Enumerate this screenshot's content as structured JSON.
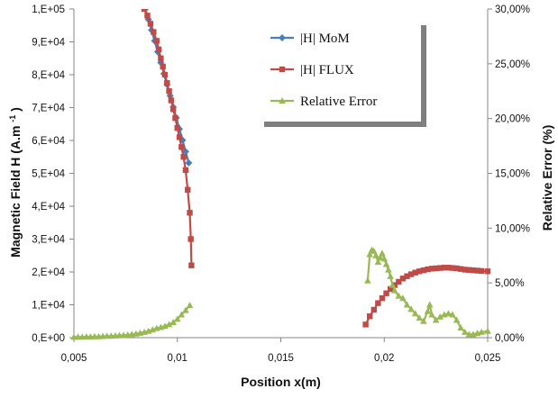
{
  "chart_data": {
    "type": "line",
    "xlabel": "Position x(m)",
    "ylabel_prefix": "Magnetic Field   H (A.m",
    "ylabel_superscript": "-1",
    "ylabel_suffix": ")",
    "y2label": "Relative Error (%)",
    "xlim": [
      0.005,
      0.025
    ],
    "ylim": [
      0,
      100000
    ],
    "y2lim": [
      0,
      30
    ],
    "grid": false,
    "legend_position": "top-right",
    "x_ticks": [
      {
        "value": 0.005,
        "label": "0,005"
      },
      {
        "value": 0.01,
        "label": "0,01"
      },
      {
        "value": 0.015,
        "label": "0,015"
      },
      {
        "value": 0.02,
        "label": "0,02"
      },
      {
        "value": 0.025,
        "label": "0,025"
      }
    ],
    "y_ticks": [
      {
        "value": 0,
        "label": "0,E+00"
      },
      {
        "value": 10000,
        "label": "1,E+04"
      },
      {
        "value": 20000,
        "label": "2,E+04"
      },
      {
        "value": 30000,
        "label": "3,E+04"
      },
      {
        "value": 40000,
        "label": "4,E+04"
      },
      {
        "value": 50000,
        "label": "5,E+04"
      },
      {
        "value": 60000,
        "label": "6,E+04"
      },
      {
        "value": 70000,
        "label": "7,E+04"
      },
      {
        "value": 80000,
        "label": "8,E+04"
      },
      {
        "value": 90000,
        "label": "9,E+04"
      },
      {
        "value": 100000,
        "label": "1,E+05"
      }
    ],
    "y2_ticks": [
      {
        "value": 0,
        "label": "0,00%"
      },
      {
        "value": 5,
        "label": "5,00%"
      },
      {
        "value": 10,
        "label": "10,00%"
      },
      {
        "value": 15,
        "label": "15,00%"
      },
      {
        "value": 20,
        "label": "20,00%"
      },
      {
        "value": 25,
        "label": "25,00%"
      },
      {
        "value": 30,
        "label": "30,00%"
      }
    ],
    "series": [
      {
        "name": "|H| MoM",
        "axis": "left",
        "color": "#4a7ebb",
        "marker": "diamond",
        "points": [
          [
            0.00845,
            100000
          ],
          [
            0.0086,
            96800
          ],
          [
            0.00875,
            93600
          ],
          [
            0.0089,
            90300
          ],
          [
            0.00905,
            87000
          ],
          [
            0.0092,
            83700
          ],
          [
            0.00935,
            80300
          ],
          [
            0.0095,
            77000
          ],
          [
            0.00965,
            73600
          ],
          [
            0.0098,
            70200
          ],
          [
            0.00995,
            66900
          ],
          [
            0.0101,
            63500
          ],
          [
            0.01025,
            60100
          ],
          [
            0.0104,
            56600
          ],
          [
            0.01055,
            53200
          ]
        ]
      },
      {
        "name": "|H| FLUX",
        "axis": "left",
        "color": "#be4b48",
        "marker": "square",
        "points": [
          [
            0.0084,
            100000
          ],
          [
            0.00855,
            98000
          ],
          [
            0.0087,
            95500
          ],
          [
            0.00885,
            93000
          ],
          [
            0.009,
            90300
          ],
          [
            0.0091,
            87700
          ],
          [
            0.0092,
            85000
          ],
          [
            0.0093,
            82500
          ],
          [
            0.0094,
            80000
          ],
          [
            0.0095,
            77500
          ],
          [
            0.0096,
            75000
          ],
          [
            0.0097,
            72200
          ],
          [
            0.0098,
            69500
          ],
          [
            0.0099,
            66800
          ],
          [
            0.01,
            63800
          ],
          [
            0.0101,
            61000
          ],
          [
            0.0102,
            58000
          ],
          [
            0.0103,
            55000
          ],
          [
            0.0104,
            51000
          ],
          [
            0.0105,
            45000
          ],
          [
            0.0106,
            38000
          ],
          [
            0.01065,
            30000
          ],
          [
            0.01068,
            22000
          ],
          [
            0.0191,
            4000
          ],
          [
            0.0193,
            6500
          ],
          [
            0.0195,
            8500
          ],
          [
            0.0197,
            10500
          ],
          [
            0.0199,
            12000
          ],
          [
            0.0201,
            13500
          ],
          [
            0.0203,
            14800
          ],
          [
            0.0205,
            16000
          ],
          [
            0.0207,
            17000
          ],
          [
            0.0209,
            18000
          ],
          [
            0.0211,
            18700
          ],
          [
            0.0213,
            19300
          ],
          [
            0.0215,
            19800
          ],
          [
            0.0217,
            20200
          ],
          [
            0.0219,
            20500
          ],
          [
            0.0221,
            20800
          ],
          [
            0.0223,
            21000
          ],
          [
            0.0225,
            21100
          ],
          [
            0.0227,
            21200
          ],
          [
            0.0229,
            21300
          ],
          [
            0.0231,
            21300
          ],
          [
            0.0233,
            21200
          ],
          [
            0.0235,
            21100
          ],
          [
            0.0237,
            20900
          ],
          [
            0.0239,
            20700
          ],
          [
            0.0241,
            20600
          ],
          [
            0.0243,
            20500
          ],
          [
            0.0245,
            20400
          ],
          [
            0.0247,
            20300
          ],
          [
            0.025,
            20200
          ]
        ]
      },
      {
        "name": "Relative Error",
        "axis": "right",
        "color": "#98b954",
        "marker": "triangle",
        "points": [
          [
            0.005,
            0.05
          ],
          [
            0.0052,
            0.06
          ],
          [
            0.0054,
            0.06
          ],
          [
            0.0056,
            0.08
          ],
          [
            0.0058,
            0.08
          ],
          [
            0.006,
            0.1
          ],
          [
            0.0062,
            0.1
          ],
          [
            0.0064,
            0.12
          ],
          [
            0.0066,
            0.14
          ],
          [
            0.0068,
            0.15
          ],
          [
            0.007,
            0.17
          ],
          [
            0.0072,
            0.2
          ],
          [
            0.0074,
            0.22
          ],
          [
            0.0076,
            0.25
          ],
          [
            0.0078,
            0.3
          ],
          [
            0.008,
            0.35
          ],
          [
            0.0082,
            0.42
          ],
          [
            0.0084,
            0.5
          ],
          [
            0.0086,
            0.6
          ],
          [
            0.0088,
            0.72
          ],
          [
            0.009,
            0.85
          ],
          [
            0.0092,
            0.95
          ],
          [
            0.0094,
            1.05
          ],
          [
            0.0096,
            1.2
          ],
          [
            0.0098,
            1.4
          ],
          [
            0.01,
            1.7
          ],
          [
            0.0102,
            2.1
          ],
          [
            0.0104,
            2.5
          ],
          [
            0.0106,
            2.95
          ],
          [
            0.0192,
            5.2
          ],
          [
            0.0193,
            7.6
          ],
          [
            0.0194,
            8.0
          ],
          [
            0.0195,
            7.9
          ],
          [
            0.0196,
            7.5
          ],
          [
            0.0197,
            6.9
          ],
          [
            0.0198,
            7.3
          ],
          [
            0.0199,
            7.7
          ],
          [
            0.02,
            7.2
          ],
          [
            0.0201,
            6.7
          ],
          [
            0.0202,
            6.2
          ],
          [
            0.0203,
            5.6
          ],
          [
            0.0204,
            4.8
          ],
          [
            0.0205,
            4.3
          ],
          [
            0.0207,
            3.8
          ],
          [
            0.0209,
            3.6
          ],
          [
            0.0211,
            3.0
          ],
          [
            0.0213,
            2.6
          ],
          [
            0.0215,
            2.2
          ],
          [
            0.0217,
            1.8
          ],
          [
            0.0219,
            1.5
          ],
          [
            0.0221,
            2.4
          ],
          [
            0.0222,
            3.0
          ],
          [
            0.0223,
            2.1
          ],
          [
            0.0225,
            1.6
          ],
          [
            0.0227,
            1.9
          ],
          [
            0.0229,
            2.1
          ],
          [
            0.0231,
            2.2
          ],
          [
            0.0233,
            2.1
          ],
          [
            0.0235,
            1.6
          ],
          [
            0.0237,
            0.9
          ],
          [
            0.0239,
            0.5
          ],
          [
            0.0241,
            0.3
          ],
          [
            0.0243,
            0.3
          ],
          [
            0.0245,
            0.4
          ],
          [
            0.0247,
            0.5
          ],
          [
            0.025,
            0.6
          ]
        ]
      }
    ]
  }
}
